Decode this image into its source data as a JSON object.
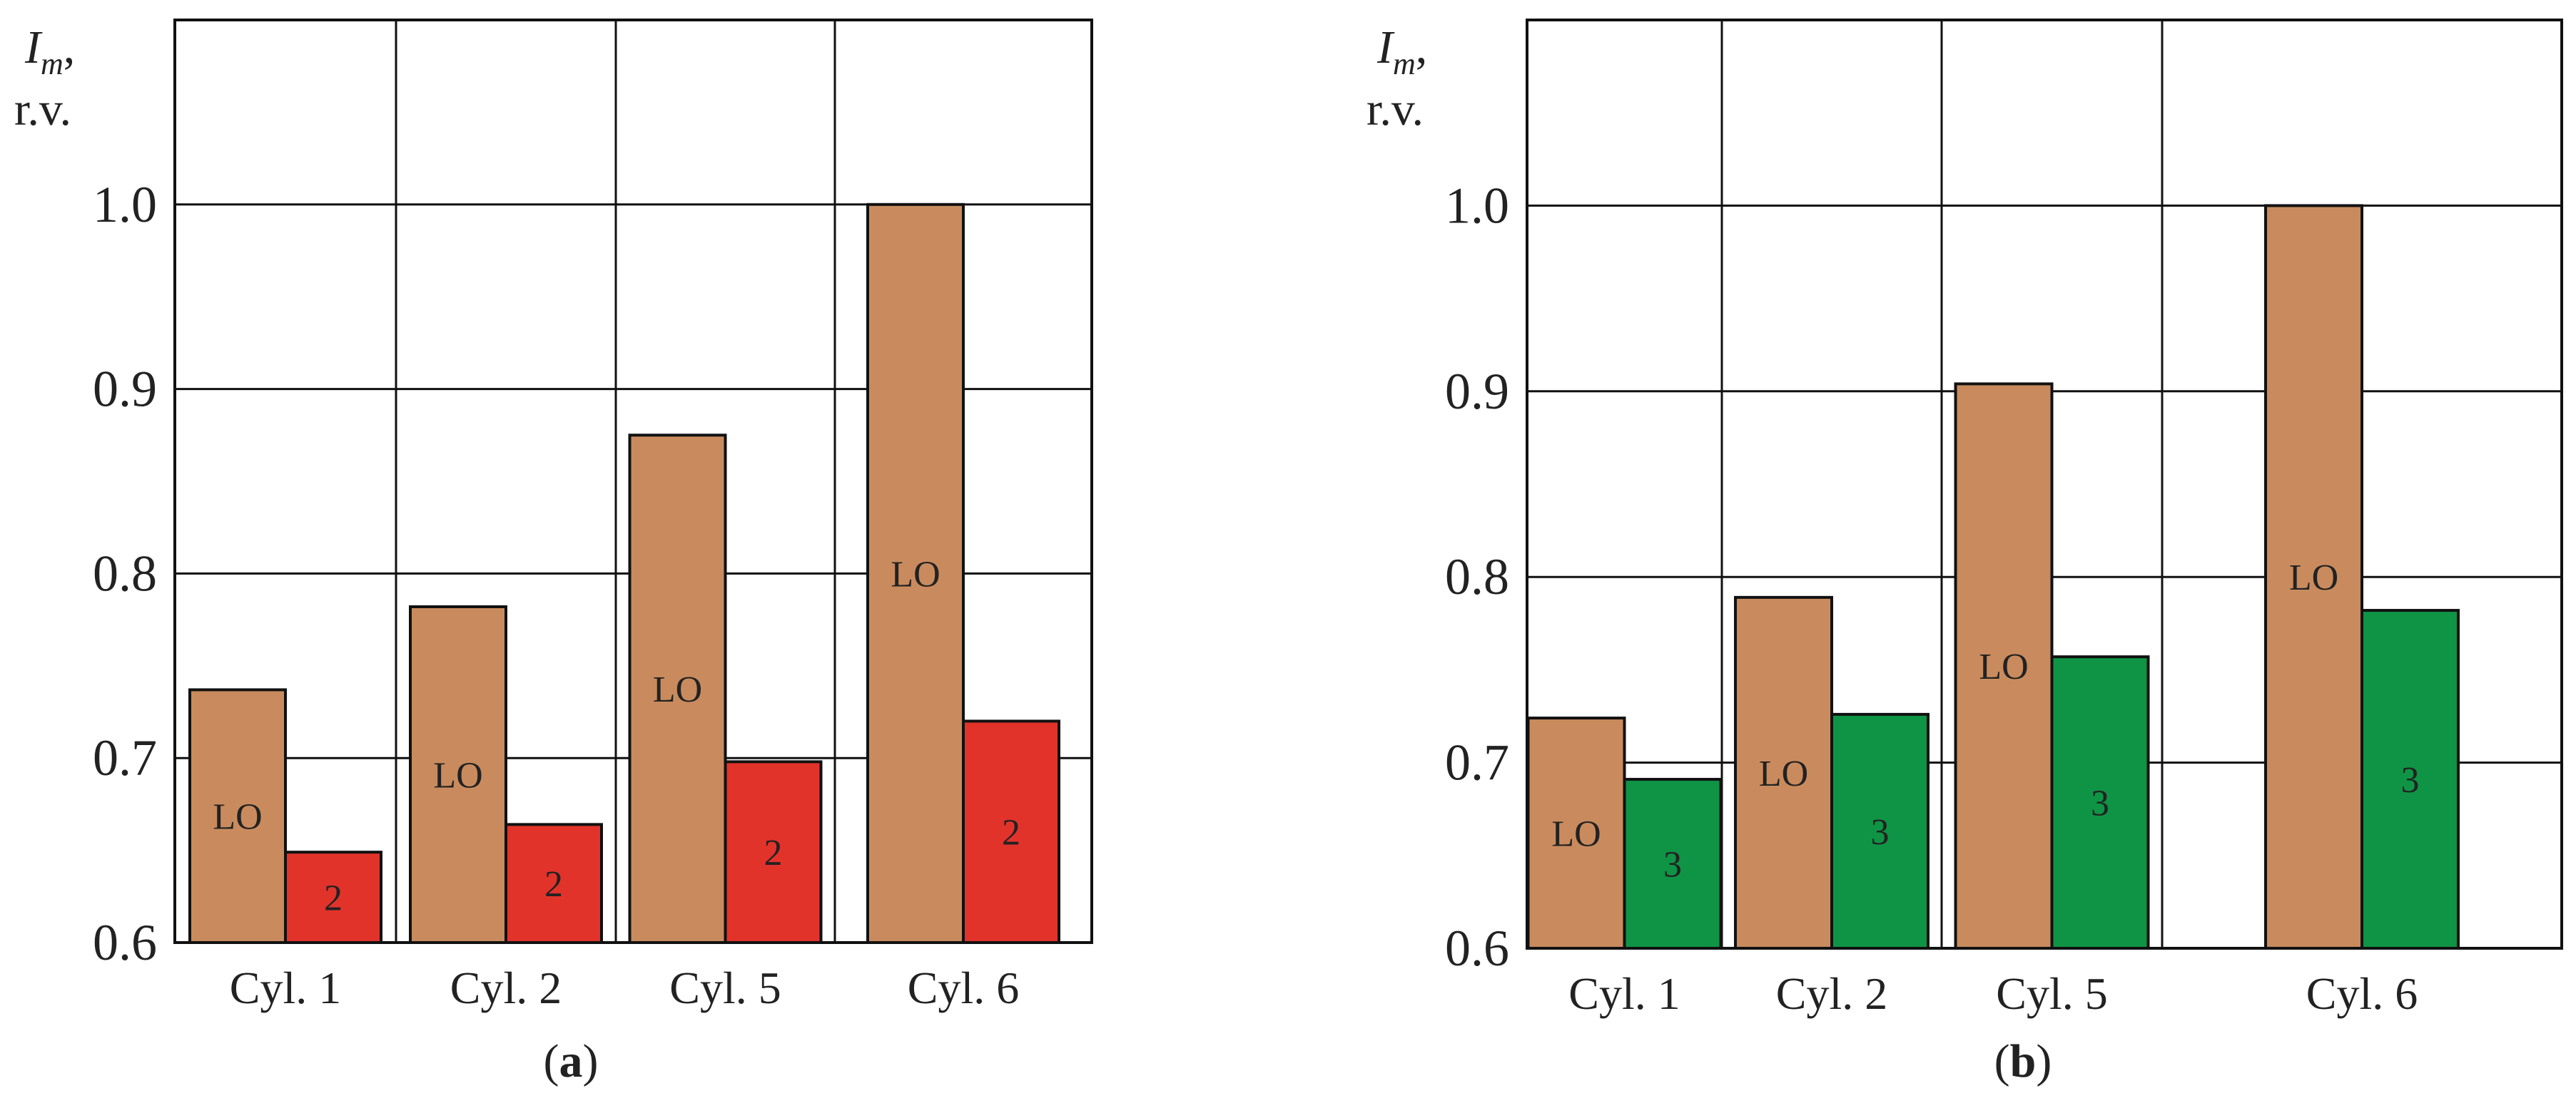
{
  "chart_data": [
    {
      "type": "bar",
      "panel_label": "a",
      "ylabel_main": "I",
      "ylabel_sub": "m",
      "ylabel_comma": ",",
      "ylabel_unit": "r.v.",
      "ylim": [
        0.6,
        1.1
      ],
      "yticks": [
        0.6,
        0.7,
        0.8,
        0.9,
        1.0
      ],
      "ytick_labels": [
        "0.6",
        "0.7",
        "0.8",
        "0.9",
        "1.0"
      ],
      "grid": true,
      "categories": [
        "Cyl. 1",
        "Cyl. 2",
        "Cyl. 5",
        "Cyl. 6"
      ],
      "series": [
        {
          "label": "LO",
          "color": "#c98b5d",
          "values": [
            0.737,
            0.782,
            0.875,
            1.0
          ]
        },
        {
          "label": "2",
          "color": "#e2332b",
          "values": [
            0.649,
            0.664,
            0.698,
            0.72
          ]
        }
      ]
    },
    {
      "type": "bar",
      "panel_label": "b",
      "ylabel_main": "I",
      "ylabel_sub": "m",
      "ylabel_comma": ",",
      "ylabel_unit": "r.v.",
      "ylim": [
        0.6,
        1.1
      ],
      "yticks": [
        0.6,
        0.7,
        0.8,
        0.9,
        1.0
      ],
      "ytick_labels": [
        "0.6",
        "0.7",
        "0.8",
        "0.9",
        "1.0"
      ],
      "grid": true,
      "categories": [
        "Cyl. 1",
        "Cyl. 2",
        "Cyl. 5",
        "Cyl. 6"
      ],
      "series": [
        {
          "label": "LO",
          "color": "#c98b5d",
          "values": [
            0.724,
            0.789,
            0.904,
            1.0
          ]
        },
        {
          "label": "3",
          "color": "#0f9445",
          "values": [
            0.691,
            0.726,
            0.757,
            0.782
          ]
        }
      ]
    }
  ]
}
